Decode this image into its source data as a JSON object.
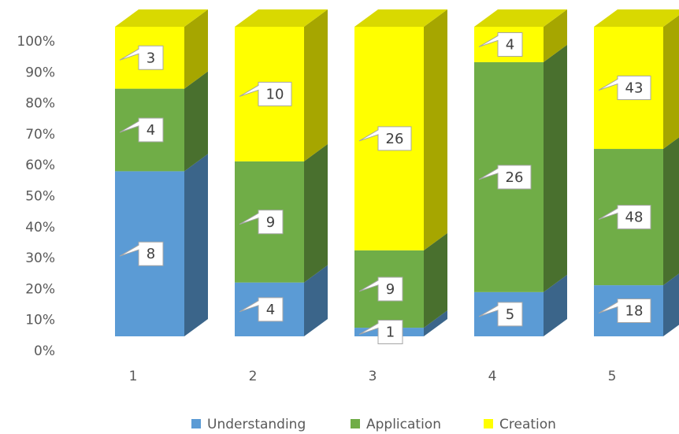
{
  "chart_data": {
    "type": "bar",
    "stacking": "percent",
    "categories": [
      "1",
      "2",
      "3",
      "4",
      "5"
    ],
    "series": [
      {
        "name": "Understanding",
        "color": "#5b9bd5",
        "values": [
          8,
          4,
          1,
          5,
          18
        ]
      },
      {
        "name": "Application",
        "color": "#70ad47",
        "values": [
          4,
          9,
          9,
          26,
          48
        ]
      },
      {
        "name": "Creation",
        "color": "#ffff00",
        "values": [
          3,
          10,
          26,
          4,
          43
        ]
      }
    ],
    "ylim": [
      0,
      100
    ],
    "yticks": [
      {
        "value": 0,
        "label": "0%"
      },
      {
        "value": 10,
        "label": "10%"
      },
      {
        "value": 20,
        "label": "20%"
      },
      {
        "value": 30,
        "label": "30%"
      },
      {
        "value": 40,
        "label": "40%"
      },
      {
        "value": 50,
        "label": "50%"
      },
      {
        "value": 60,
        "label": "60%"
      },
      {
        "value": 70,
        "label": "70%"
      },
      {
        "value": 80,
        "label": "80%"
      },
      {
        "value": 90,
        "label": "90%"
      },
      {
        "value": 100,
        "label": "100%"
      }
    ],
    "legend": "bottom"
  }
}
